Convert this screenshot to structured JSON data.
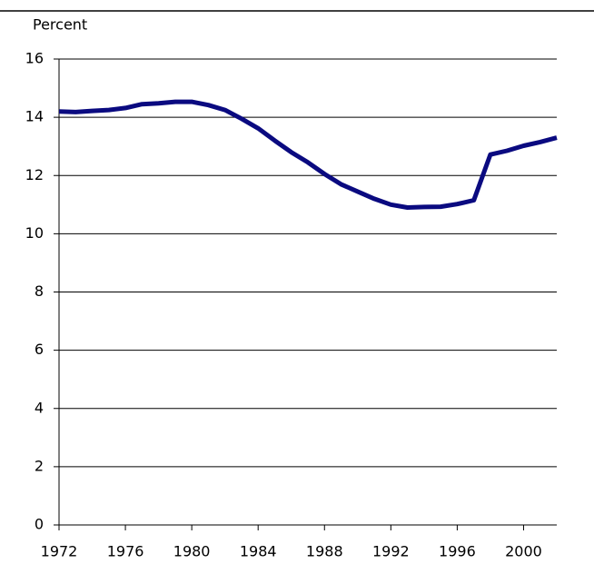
{
  "chart_data": {
    "type": "line",
    "y_label": "Percent",
    "x": [
      1972,
      1973,
      1974,
      1975,
      1976,
      1977,
      1978,
      1979,
      1980,
      1981,
      1982,
      1983,
      1984,
      1985,
      1986,
      1987,
      1988,
      1989,
      1990,
      1991,
      1992,
      1993,
      1994,
      1995,
      1996,
      1997,
      1998,
      1999,
      2000,
      2001,
      2002
    ],
    "series": [
      {
        "color": "#0a0a80",
        "values": [
          14.2,
          14.18,
          14.22,
          14.25,
          14.32,
          14.45,
          14.48,
          14.53,
          14.53,
          14.42,
          14.25,
          13.95,
          13.62,
          13.2,
          12.8,
          12.45,
          12.05,
          11.7,
          11.45,
          11.2,
          11.0,
          10.9,
          10.92,
          10.93,
          11.02,
          11.15,
          12.72,
          12.85,
          13.02,
          13.15,
          13.3
        ]
      }
    ],
    "xlim": [
      1972,
      2002
    ],
    "xticks": [
      1972,
      1976,
      1980,
      1984,
      1988,
      1992,
      1996,
      2000
    ],
    "ylim": [
      0,
      16
    ],
    "yticks": [
      0,
      2,
      4,
      6,
      8,
      10,
      12,
      14,
      16
    ],
    "grid": true
  }
}
